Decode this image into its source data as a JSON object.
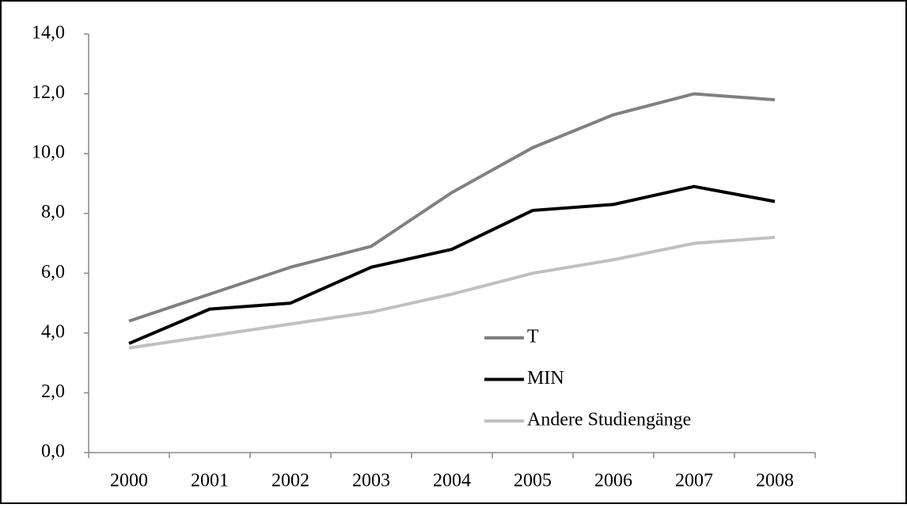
{
  "chart_data": {
    "type": "line",
    "categories": [
      "2000",
      "2001",
      "2002",
      "2003",
      "2004",
      "2005",
      "2006",
      "2007",
      "2008"
    ],
    "series": [
      {
        "name": "T",
        "color": "#808080",
        "values": [
          4.4,
          5.3,
          6.2,
          6.9,
          8.7,
          10.2,
          11.3,
          12.0,
          11.8
        ]
      },
      {
        "name": "MIN",
        "color": "#000000",
        "values": [
          3.65,
          4.8,
          5.0,
          6.2,
          6.8,
          8.1,
          8.3,
          8.9,
          8.4
        ]
      },
      {
        "name": "Andere Studiengänge",
        "color": "#c0c0c0",
        "values": [
          3.5,
          3.9,
          4.3,
          4.7,
          5.3,
          6.0,
          6.45,
          7.0,
          7.2
        ]
      }
    ],
    "ylim": [
      0,
      14
    ],
    "yticks": [
      {
        "value": 0,
        "label": "0,0"
      },
      {
        "value": 2,
        "label": "2,0"
      },
      {
        "value": 4,
        "label": "4,0"
      },
      {
        "value": 6,
        "label": "6,0"
      },
      {
        "value": 8,
        "label": "8,0"
      },
      {
        "value": 10,
        "label": "10,0"
      },
      {
        "value": 12,
        "label": "12,0"
      },
      {
        "value": 14,
        "label": "14,0"
      }
    ],
    "grid": false
  }
}
